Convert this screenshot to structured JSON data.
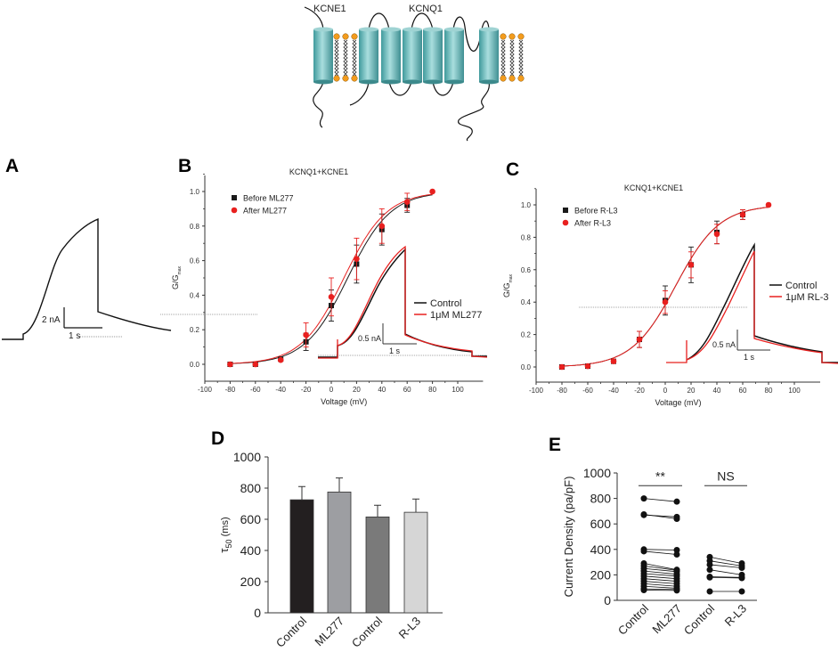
{
  "diagram": {
    "labels": [
      "KCNE1",
      "KCNQ1"
    ],
    "colors": {
      "helix": "#5fb3b3",
      "lipid_head": "#f39c1e"
    }
  },
  "panels": {
    "A": "A",
    "B": "B",
    "C": "C",
    "D": "D",
    "E": "E"
  },
  "traceA": {
    "v_scale": "2 nA",
    "t_scale": "1 s"
  },
  "chart_data": [
    {
      "id": "B",
      "type": "scatter",
      "title": "KCNQ1+KCNE1",
      "xlabel": "Voltage (mV)",
      "ylabel": "G/G",
      "ylabel_sub": "max",
      "xlim": [
        -100,
        120
      ],
      "ylim": [
        0,
        1.0
      ],
      "xticks": [
        -100,
        -80,
        -60,
        -40,
        -20,
        0,
        20,
        40,
        60,
        80,
        100
      ],
      "yticks": [
        "0.0",
        "0.2",
        "0.4",
        "0.6",
        "0.8",
        "1.0"
      ],
      "x": [
        -80,
        -60,
        -40,
        -20,
        0,
        20,
        40,
        60,
        80
      ],
      "series": [
        {
          "name": "Before ML277",
          "color": "#1a1a1a",
          "marker": "square",
          "values": [
            0,
            0,
            0.03,
            0.13,
            0.34,
            0.58,
            0.78,
            0.92,
            null
          ],
          "errors": [
            0,
            0,
            0,
            0.05,
            0.09,
            0.11,
            0.09,
            0.04,
            0
          ],
          "fit": {
            "v_half": 13,
            "k": 17
          }
        },
        {
          "name": "After ML277",
          "color": "#e8201f",
          "marker": "circle",
          "values": [
            0,
            0,
            0.025,
            0.17,
            0.39,
            0.61,
            0.8,
            0.94,
            1.0
          ],
          "errors": [
            0,
            0,
            0,
            0.07,
            0.11,
            0.12,
            0.1,
            0.05,
            0
          ],
          "fit": {
            "v_half": 10,
            "k": 17
          }
        }
      ],
      "inset": {
        "legend": [
          "Control",
          "1μM ML277"
        ],
        "v_scale": "0.5 nA",
        "t_scale": "1 s"
      }
    },
    {
      "id": "C",
      "type": "scatter",
      "title": "KCNQ1+KCNE1",
      "xlabel": "Voltage (mV)",
      "ylabel": "G/G",
      "ylabel_sub": "max",
      "xlim": [
        -100,
        120
      ],
      "ylim": [
        0,
        1.0
      ],
      "xticks": [
        -100,
        -80,
        -60,
        -40,
        -20,
        0,
        20,
        40,
        60,
        80,
        100
      ],
      "yticks": [
        "0.0",
        "0.2",
        "0.4",
        "0.6",
        "0.8",
        "1.0"
      ],
      "x": [
        -80,
        -60,
        -40,
        -20,
        0,
        20,
        40,
        60,
        80
      ],
      "series": [
        {
          "name": "Before R-L3",
          "color": "#1a1a1a",
          "marker": "square",
          "values": [
            0,
            0.005,
            0.035,
            0.17,
            0.41,
            0.63,
            0.83,
            0.94,
            null
          ],
          "errors": [
            0,
            0,
            0.01,
            0.05,
            0.09,
            0.11,
            0.07,
            0.03,
            0
          ],
          "fit": {
            "v_half": 8,
            "k": 17
          }
        },
        {
          "name": "After R-L3",
          "color": "#e8201f",
          "marker": "circle",
          "values": [
            0,
            0.005,
            0.035,
            0.17,
            0.4,
            0.63,
            0.82,
            0.94,
            1.0
          ],
          "errors": [
            0,
            0,
            0.01,
            0.05,
            0.07,
            0.08,
            0.06,
            0.03,
            0
          ],
          "fit": {
            "v_half": 8,
            "k": 17
          }
        }
      ],
      "inset": {
        "legend": [
          "Control",
          "1μM RL-3"
        ],
        "v_scale": "0.5 nA",
        "t_scale": "1 s"
      }
    },
    {
      "id": "D",
      "type": "bar",
      "ylabel": "τ",
      "ylabel_sub": "50",
      "ylabel_unit": " (ms)",
      "categories": [
        "Control",
        "ML277",
        "Control",
        "R-L3"
      ],
      "values": [
        725,
        775,
        615,
        645
      ],
      "errors": [
        85,
        90,
        75,
        85
      ],
      "colors": [
        "#231f20",
        "#9d9ea2",
        "#7a7a7a",
        "#d6d6d6"
      ],
      "ylim": [
        0,
        1000
      ],
      "yticks": [
        "0",
        "200",
        "400",
        "600",
        "800",
        "1000"
      ]
    },
    {
      "id": "E",
      "type": "scatter",
      "ylabel": "Current Density (pa/pF)",
      "categories": [
        "Control",
        "ML277",
        "Control",
        "R-L3"
      ],
      "ylim": [
        0,
        1000
      ],
      "yticks": [
        "0",
        "200",
        "400",
        "600",
        "800",
        "1000"
      ],
      "pairs": [
        {
          "from": "Control",
          "to": "ML277",
          "significance": "**",
          "values": [
            [
              800,
              775
            ],
            [
              670,
              655
            ],
            [
              675,
              640
            ],
            [
              400,
              395
            ],
            [
              385,
              360
            ],
            [
              290,
              240
            ],
            [
              270,
              235
            ],
            [
              250,
              225
            ],
            [
              230,
              205
            ],
            [
              210,
              190
            ],
            [
              190,
              170
            ],
            [
              170,
              150
            ],
            [
              150,
              130
            ],
            [
              130,
              110
            ],
            [
              110,
              95
            ],
            [
              90,
              85
            ],
            [
              80,
              78
            ]
          ]
        },
        {
          "from": "Control",
          "to": "R-L3",
          "significance": "NS",
          "values": [
            [
              340,
              290
            ],
            [
              310,
              270
            ],
            [
              280,
              255
            ],
            [
              240,
              200
            ],
            [
              185,
              180
            ],
            [
              180,
              175
            ],
            [
              70,
              70
            ]
          ]
        }
      ]
    }
  ]
}
